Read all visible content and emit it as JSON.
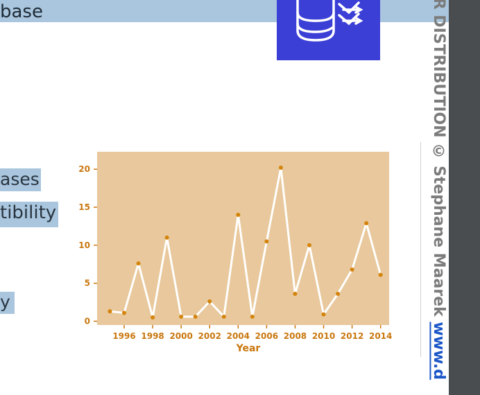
{
  "slide": {
    "title_fragment": "base",
    "bullets": [
      "ases",
      "tibility",
      "y"
    ]
  },
  "watermark": {
    "text": "OR DISTRIBUTION © Stephane Maarek ",
    "link": "www.d"
  },
  "chart_data": {
    "type": "line",
    "x": [
      1995,
      1996,
      1997,
      1998,
      1999,
      2000,
      2001,
      2002,
      2003,
      2004,
      2005,
      2006,
      2007,
      2008,
      2009,
      2010,
      2011,
      2012,
      2013,
      2014
    ],
    "series": [
      {
        "values": [
          1.3,
          1.1,
          7.6,
          0.5,
          11.0,
          0.6,
          0.6,
          2.6,
          0.6,
          14.0,
          0.6,
          10.5,
          20.2,
          3.6,
          10.0,
          0.9,
          3.6,
          6.8,
          12.9,
          6.1
        ]
      }
    ],
    "xticks": [
      "1996",
      "1998",
      "2000",
      "2002",
      "2004",
      "2006",
      "2008",
      "2010",
      "2012",
      "2014"
    ],
    "yticks": [
      "0",
      "5",
      "10",
      "15",
      "20"
    ],
    "xlabel": "Year",
    "ylabel": "",
    "xlim": [
      1994.1,
      2014.6
    ],
    "ylim": [
      -0.5,
      22.3
    ],
    "grid": false,
    "colors": {
      "background": "#e8c89c",
      "line": "#ffffff",
      "marker": "#d4840a",
      "tick_text": "#c9770e"
    }
  }
}
